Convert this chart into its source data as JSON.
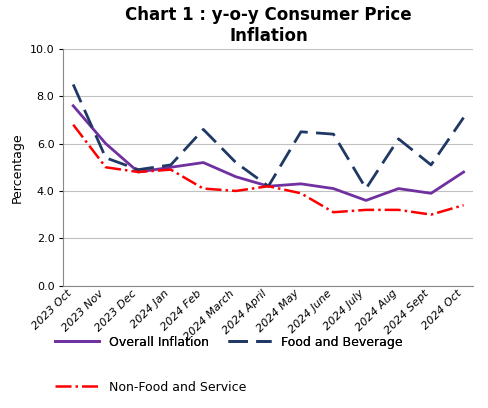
{
  "title": "Chart 1 : y-o-y Consumer Price\nInflation",
  "ylabel": "Percentage",
  "categories": [
    "2023 Oct",
    "2023 Nov",
    "2023 Dec",
    "2024 Jan",
    "2024 Feb",
    "2024 March",
    "2024 April",
    "2024 May",
    "2024 June",
    "2024 July",
    "2024 Aug",
    "2024 Sept",
    "2024 Oct"
  ],
  "overall_inflation": [
    7.6,
    6.0,
    4.8,
    5.0,
    5.2,
    4.6,
    4.2,
    4.3,
    4.1,
    3.6,
    4.1,
    3.9,
    4.8
  ],
  "food_and_beverage": [
    8.5,
    5.4,
    4.9,
    5.1,
    6.6,
    5.2,
    4.2,
    6.5,
    6.4,
    4.1,
    6.2,
    5.1,
    7.1
  ],
  "non_food_service": [
    6.8,
    5.0,
    4.8,
    4.9,
    4.1,
    4.0,
    4.2,
    3.9,
    3.1,
    3.2,
    3.2,
    3.0,
    3.4
  ],
  "overall_color": "#7030A0",
  "food_color": "#1F3864",
  "non_food_color": "#FF0000",
  "non_food_dash_color": "#F4B8B8",
  "ylim_min": 0.0,
  "ylim_max": 10.0,
  "yticks": [
    0.0,
    2.0,
    4.0,
    6.0,
    8.0,
    10.0
  ],
  "bg_color": "#ffffff",
  "grid_color": "#c0c0c0",
  "title_fontsize": 12,
  "axis_label_fontsize": 9,
  "tick_fontsize": 8,
  "legend_fontsize": 9
}
